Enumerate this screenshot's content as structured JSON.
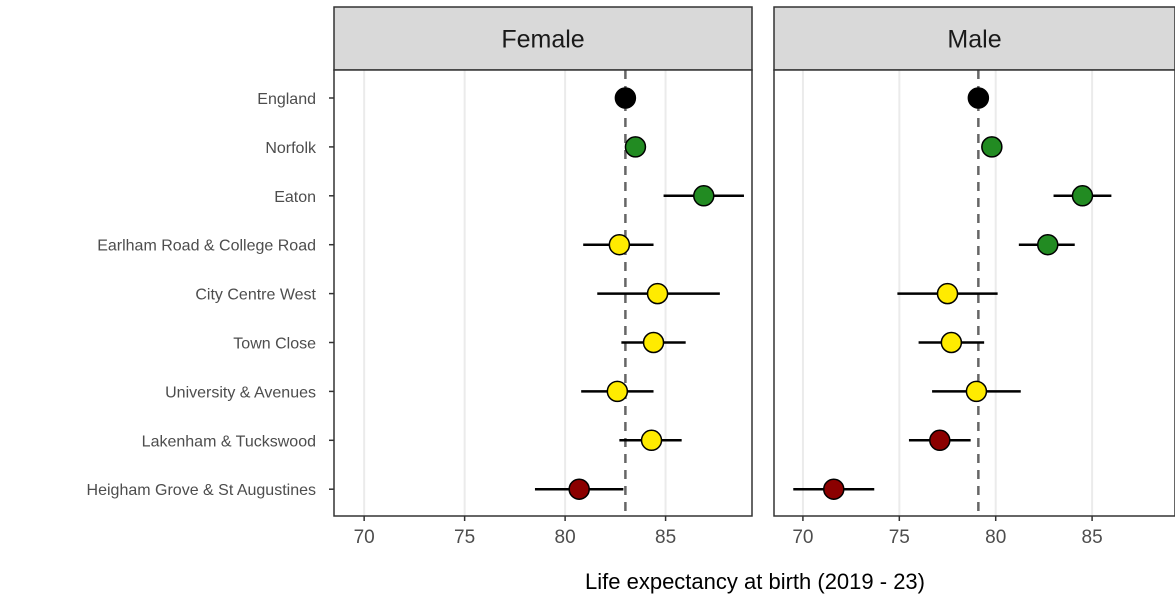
{
  "chart_data": {
    "type": "scatter",
    "subtype": "dot-and-whisker, faceted",
    "xlabel": "Life expectancy at birth (2019 - 23)",
    "xlim": [
      68.5,
      89.3
    ],
    "xticks": [
      "70",
      "75",
      "80",
      "85"
    ],
    "grid": "vertical major gridlines",
    "categories": [
      "England",
      "Norfolk",
      "Eaton",
      "Earlham Road & College Road",
      "City Centre West",
      "Town Close",
      "University & Avenues",
      "Lakenham & Tuckswood",
      "Heigham Grove & St Augustines"
    ],
    "colors": {
      "england": "#000000",
      "significantly_better": "#228b22",
      "similar": "#ffeb00",
      "significantly_worse": "#8b0000",
      "reference_line": "#666666"
    },
    "facets": [
      {
        "name": "Female",
        "reference": 83.0,
        "points": [
          {
            "category": "England",
            "value": 83.0,
            "low": null,
            "high": null,
            "color": "england"
          },
          {
            "category": "Norfolk",
            "value": 83.5,
            "low": null,
            "high": null,
            "color": "significantly_better"
          },
          {
            "category": "Eaton",
            "value": 86.9,
            "low": 84.9,
            "high": 88.9,
            "color": "significantly_better"
          },
          {
            "category": "Earlham Road & College Road",
            "value": 82.7,
            "low": 80.9,
            "high": 84.4,
            "color": "similar"
          },
          {
            "category": "City Centre West",
            "value": 84.6,
            "low": 81.6,
            "high": 87.7,
            "color": "similar"
          },
          {
            "category": "Town Close",
            "value": 84.4,
            "low": 82.8,
            "high": 86.0,
            "color": "similar"
          },
          {
            "category": "University & Avenues",
            "value": 82.6,
            "low": 80.8,
            "high": 84.4,
            "color": "similar"
          },
          {
            "category": "Lakenham & Tuckswood",
            "value": 84.3,
            "low": 82.7,
            "high": 85.8,
            "color": "similar"
          },
          {
            "category": "Heigham Grove & St Augustines",
            "value": 80.7,
            "low": 78.5,
            "high": 82.9,
            "color": "significantly_worse"
          }
        ]
      },
      {
        "name": "Male",
        "reference": 79.1,
        "points": [
          {
            "category": "England",
            "value": 79.1,
            "low": null,
            "high": null,
            "color": "england"
          },
          {
            "category": "Norfolk",
            "value": 79.8,
            "low": null,
            "high": null,
            "color": "significantly_better"
          },
          {
            "category": "Eaton",
            "value": 84.5,
            "low": 83.0,
            "high": 86.0,
            "color": "significantly_better"
          },
          {
            "category": "Earlham Road & College Road",
            "value": 82.7,
            "low": 81.2,
            "high": 84.1,
            "color": "significantly_better"
          },
          {
            "category": "City Centre West",
            "value": 77.5,
            "low": 74.9,
            "high": 80.1,
            "color": "similar"
          },
          {
            "category": "Town Close",
            "value": 77.7,
            "low": 76.0,
            "high": 79.4,
            "color": "similar"
          },
          {
            "category": "University & Avenues",
            "value": 79.0,
            "low": 76.7,
            "high": 81.3,
            "color": "similar"
          },
          {
            "category": "Lakenham & Tuckswood",
            "value": 77.1,
            "low": 75.5,
            "high": 78.7,
            "color": "significantly_worse"
          },
          {
            "category": "Heigham Grove & St Augustines",
            "value": 71.6,
            "low": 69.5,
            "high": 73.7,
            "color": "significantly_worse"
          }
        ]
      }
    ]
  }
}
